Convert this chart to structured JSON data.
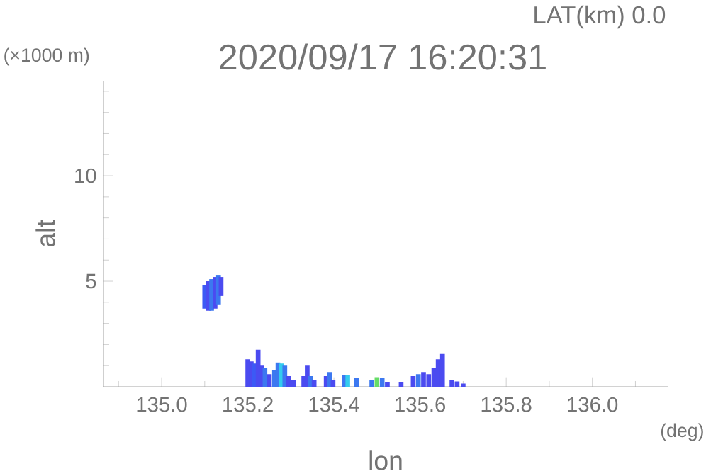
{
  "chart_data": {
    "type": "bar",
    "title": "2020/09/17 16:20:31",
    "xlabel": "lon",
    "ylabel": "alt",
    "annotations": [
      "LAT(km) 0.0",
      "(×1000 m)",
      "(deg)"
    ],
    "xlim": [
      134.865,
      136.175
    ],
    "ylim": [
      0,
      14.5
    ],
    "xticks": [
      {
        "value": 134.9,
        "label": null
      },
      {
        "value": 135.0,
        "label": "135.0"
      },
      {
        "value": 135.1,
        "label": null
      },
      {
        "value": 135.2,
        "label": "135.2"
      },
      {
        "value": 135.3,
        "label": null
      },
      {
        "value": 135.4,
        "label": "135.4"
      },
      {
        "value": 135.5,
        "label": null
      },
      {
        "value": 135.6,
        "label": "135.6"
      },
      {
        "value": 135.7,
        "label": null
      },
      {
        "value": 135.8,
        "label": "135.8"
      },
      {
        "value": 135.9,
        "label": null
      },
      {
        "value": 136.0,
        "label": "136.0"
      },
      {
        "value": 136.1,
        "label": null
      }
    ],
    "yticks": [
      {
        "value": 1,
        "label": null
      },
      {
        "value": 2,
        "label": null
      },
      {
        "value": 3,
        "label": null
      },
      {
        "value": 4,
        "label": null
      },
      5,
      {
        "value": 6,
        "label": null
      },
      {
        "value": 7,
        "label": null
      },
      {
        "value": 8,
        "label": null
      },
      {
        "value": 9,
        "label": null
      },
      10,
      {
        "value": 11,
        "label": null
      },
      {
        "value": 12,
        "label": null
      },
      {
        "value": 13,
        "label": null
      },
      {
        "value": 14,
        "label": null
      }
    ],
    "x": [
      135.1,
      135.108,
      135.116,
      135.124,
      135.132,
      135.138,
      135.2,
      135.208,
      135.216,
      135.224,
      135.232,
      135.24,
      135.25,
      135.262,
      135.27,
      135.278,
      135.286,
      135.294,
      135.306,
      135.33,
      135.338,
      135.346,
      135.354,
      135.382,
      135.39,
      135.398,
      135.424,
      135.432,
      135.452,
      135.488,
      135.5,
      135.512,
      135.524,
      135.556,
      135.584,
      135.596,
      135.608,
      135.62,
      135.632,
      135.642,
      135.652,
      135.674,
      135.686,
      135.7
    ],
    "base": [
      3.7,
      3.6,
      3.6,
      3.7,
      3.9,
      4.3,
      0,
      0,
      0,
      0,
      0,
      0,
      0,
      0,
      0,
      0,
      0,
      0,
      0,
      0,
      0,
      0,
      0,
      0,
      0,
      0,
      0,
      0,
      0,
      0,
      0,
      0,
      0,
      0,
      0,
      0,
      0,
      0,
      0,
      0,
      0,
      0,
      0,
      0
    ],
    "values": [
      1.1,
      1.4,
      1.5,
      1.5,
      1.4,
      0.9,
      1.3,
      1.2,
      1.1,
      1.75,
      1.0,
      0.9,
      0.6,
      0.8,
      1.15,
      1.1,
      1.0,
      0.5,
      0.3,
      0.5,
      1.0,
      0.5,
      0.3,
      0.5,
      0.7,
      0.3,
      0.55,
      0.55,
      0.4,
      0.3,
      0.45,
      0.4,
      0.2,
      0.2,
      0.5,
      0.6,
      0.7,
      0.6,
      0.9,
      1.3,
      1.55,
      0.3,
      0.25,
      0.15
    ],
    "colors": [
      "#3c5af5",
      "#4b4bf0",
      "#3c78f0",
      "#4b4bf0",
      "#3c78f0",
      "#4b4bf0",
      "#4b4bf0",
      "#4b4bf0",
      "#3c5af5",
      "#4b4bf0",
      "#4b4bf0",
      "#3c78f0",
      "#4b4bf0",
      "#3c78f0",
      "#3c78f0",
      "#33ccee",
      "#3c78f0",
      "#4b4bf0",
      "#4b4bf0",
      "#4b4bf0",
      "#4b4bf0",
      "#3c78f0",
      "#4b4bf0",
      "#4b4bf0",
      "#3c78f0",
      "#4b4bf0",
      "#3c78f0",
      "#33ccee",
      "#3c78f0",
      "#3c78f0",
      "#66dd66",
      "#3c78f0",
      "#4b4bf0",
      "#4b4bf0",
      "#4b4bf0",
      "#3c78f0",
      "#4b4bf0",
      "#4b4bf0",
      "#4b4bf0",
      "#4b4bf0",
      "#4b4bf0",
      "#4b4bf0",
      "#4b4bf0",
      "#4b4bf0"
    ]
  }
}
